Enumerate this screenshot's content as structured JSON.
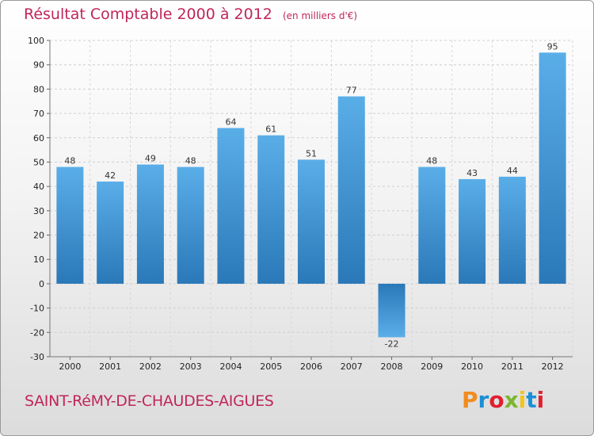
{
  "header": {
    "title": "Résultat Comptable 2000 à 2012",
    "unit": "(en milliers d'€)"
  },
  "footer": {
    "place": "SAINT-RéMY-DE-CHAUDES-AIGUES"
  },
  "logo": {
    "text": "Proxiti",
    "colors": [
      "#f28c1e",
      "#1b8fd6",
      "#e0202f",
      "#7bb62e",
      "#f2c41a",
      "#1b8fd6",
      "#e0202f"
    ]
  },
  "colors": {
    "bar_light": "#5aaee8",
    "bar_dark": "#2a78b8",
    "title": "#c0265a"
  },
  "chart_data": {
    "type": "bar",
    "categories": [
      "2000",
      "2001",
      "2002",
      "2003",
      "2004",
      "2005",
      "2006",
      "2007",
      "2008",
      "2009",
      "2010",
      "2011",
      "2012"
    ],
    "values": [
      48,
      42,
      49,
      48,
      64,
      61,
      51,
      77,
      -22,
      48,
      43,
      44,
      95
    ],
    "ylim": [
      -30,
      100
    ],
    "yticks": [
      -30,
      -20,
      -10,
      0,
      10,
      20,
      30,
      40,
      50,
      60,
      70,
      80,
      90,
      100
    ],
    "grid": true
  }
}
